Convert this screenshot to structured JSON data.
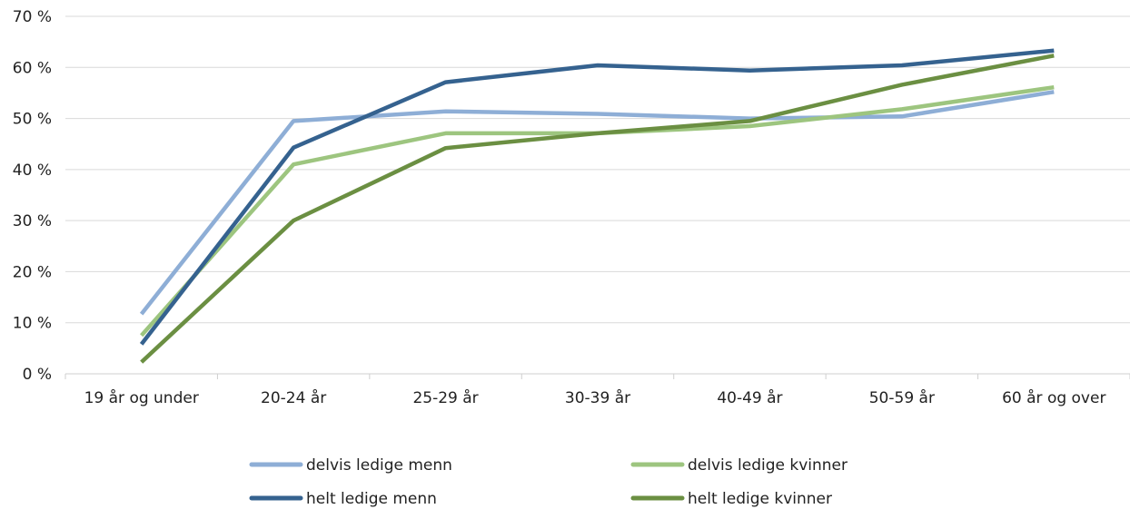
{
  "chart_data": {
    "type": "line",
    "title": "",
    "xlabel": "",
    "ylabel": "",
    "categories": [
      "19 år og under",
      "20-24 år",
      "25-29 år",
      "30-39 år",
      "40-49 år",
      "50-59 år",
      "60 år og over"
    ],
    "y_ticks": [
      "0 %",
      "10 %",
      "20 %",
      "30 %",
      "40 %",
      "50 %",
      "60 %",
      "70 %"
    ],
    "ylim": [
      0,
      70
    ],
    "grid": true,
    "legend_position": "bottom",
    "series": [
      {
        "name": "delvis ledige menn",
        "color": "#8eaed6",
        "values": [
          11.7,
          49.5,
          51.4,
          50.9,
          50.0,
          50.4,
          55.2
        ]
      },
      {
        "name": "delvis ledige kvinner",
        "color": "#9dc57f",
        "values": [
          7.5,
          41.0,
          47.1,
          47.1,
          48.5,
          51.8,
          56.1
        ]
      },
      {
        "name": "helt ledige menn",
        "color": "#35628f",
        "values": [
          5.8,
          44.3,
          57.1,
          60.4,
          59.4,
          60.4,
          63.3
        ]
      },
      {
        "name": "helt ledige kvinner",
        "color": "#6b8f42",
        "values": [
          2.3,
          30.0,
          44.2,
          47.1,
          49.5,
          56.6,
          62.3
        ]
      }
    ]
  }
}
